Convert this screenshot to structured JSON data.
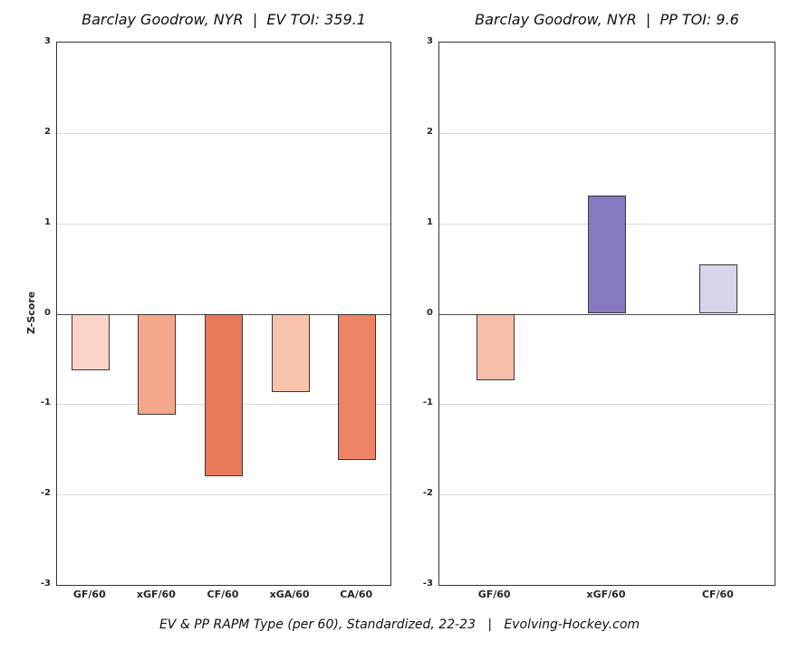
{
  "caption": "EV & PP RAPM Type (per 60), Standardized, 22-23   |   Evolving-Hockey.com",
  "ylabel": "Z-Score",
  "chart_data": [
    {
      "type": "bar",
      "title": "Barclay Goodrow, NYR  |  EV TOI: 359.1",
      "categories": [
        "GF/60",
        "xGF/60",
        "CF/60",
        "xGA/60",
        "CA/60"
      ],
      "values": [
        -0.63,
        -1.12,
        -1.8,
        -0.87,
        -1.62
      ],
      "colors": [
        "#fad3c6",
        "#f5a78c",
        "#e8795a",
        "#f8c3ac",
        "#ee8365"
      ],
      "ylabel": "Z-Score",
      "xlabel": "",
      "ylim": [
        -3,
        3
      ],
      "yticks": [
        3,
        2,
        1,
        0,
        -1,
        -2,
        -3
      ],
      "grid": true,
      "legend": "none"
    },
    {
      "type": "bar",
      "title": "Barclay Goodrow, NYR  |  PP TOI: 9.6",
      "categories": [
        "GF/60",
        "xGF/60",
        "CF/60"
      ],
      "values": [
        -0.74,
        1.31,
        0.55
      ],
      "colors": [
        "#f8bfa8",
        "#8878c0",
        "#d9d3ec"
      ],
      "ylabel": "",
      "xlabel": "",
      "ylim": [
        -3,
        3
      ],
      "yticks": [
        3,
        2,
        1,
        0,
        -1,
        -2,
        -3
      ],
      "grid": true,
      "legend": "none"
    }
  ]
}
